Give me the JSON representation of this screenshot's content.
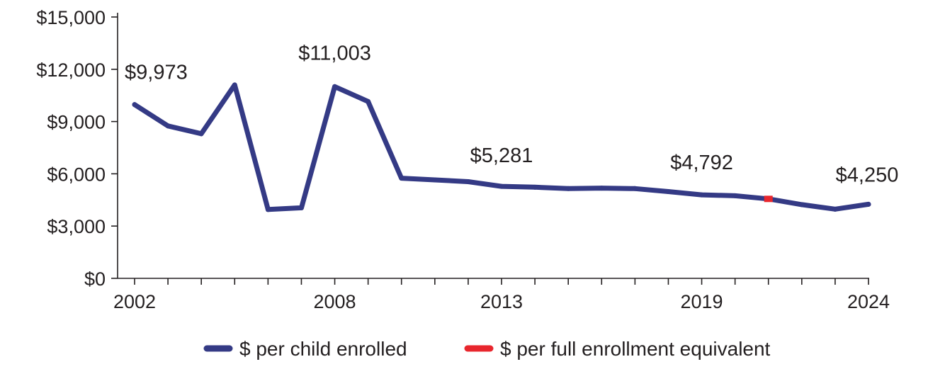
{
  "chart_data": {
    "type": "line",
    "title": "",
    "xlabel": "",
    "ylabel": "",
    "ylim": [
      0,
      15000
    ],
    "y_ticks": [
      "$0",
      "$3,000",
      "$6,000",
      "$9,000",
      "$12,000",
      "$15,000"
    ],
    "y_tick_values": [
      0,
      3000,
      6000,
      9000,
      12000,
      15000
    ],
    "x": [
      2002,
      2003,
      2004,
      2005,
      2006,
      2007,
      2008,
      2009,
      2010,
      2011,
      2012,
      2013,
      2014,
      2015,
      2016,
      2017,
      2018,
      2019,
      2020,
      2021,
      2022,
      2023,
      2024
    ],
    "x_tick_labels": [
      {
        "year": 2002,
        "label": "2002"
      },
      {
        "year": 2008,
        "label": "2008"
      },
      {
        "year": 2013,
        "label": "2013"
      },
      {
        "year": 2019,
        "label": "2019"
      },
      {
        "year": 2024,
        "label": "2024"
      }
    ],
    "series": [
      {
        "name": "$ per child enrolled",
        "color": "#343a85",
        "x": [
          2002,
          2003,
          2004,
          2005,
          2006,
          2007,
          2008,
          2009,
          2010,
          2011,
          2012,
          2013,
          2014,
          2015,
          2016,
          2017,
          2018,
          2019,
          2020,
          2021,
          2022,
          2023,
          2024
        ],
        "values": [
          9973,
          8750,
          8300,
          11100,
          3950,
          4050,
          11003,
          10150,
          5750,
          5650,
          5550,
          5281,
          5230,
          5150,
          5180,
          5150,
          4980,
          4792,
          4740,
          4560,
          4230,
          3970,
          4250
        ]
      },
      {
        "name": "$ per full enrollment equivalent",
        "color": "#e8262d",
        "x": [
          2021
        ],
        "values": [
          4560
        ]
      }
    ],
    "annotations": [
      {
        "year": 2002,
        "value": 9973,
        "text": "$9,973"
      },
      {
        "year": 2008,
        "value": 11003,
        "text": "$11,003"
      },
      {
        "year": 2013,
        "value": 5281,
        "text": "$5,281"
      },
      {
        "year": 2019,
        "value": 4792,
        "text": "$4,792"
      },
      {
        "year": 2024,
        "value": 4250,
        "text": "$4,250"
      }
    ],
    "legend_position": "bottom",
    "grid": false
  }
}
